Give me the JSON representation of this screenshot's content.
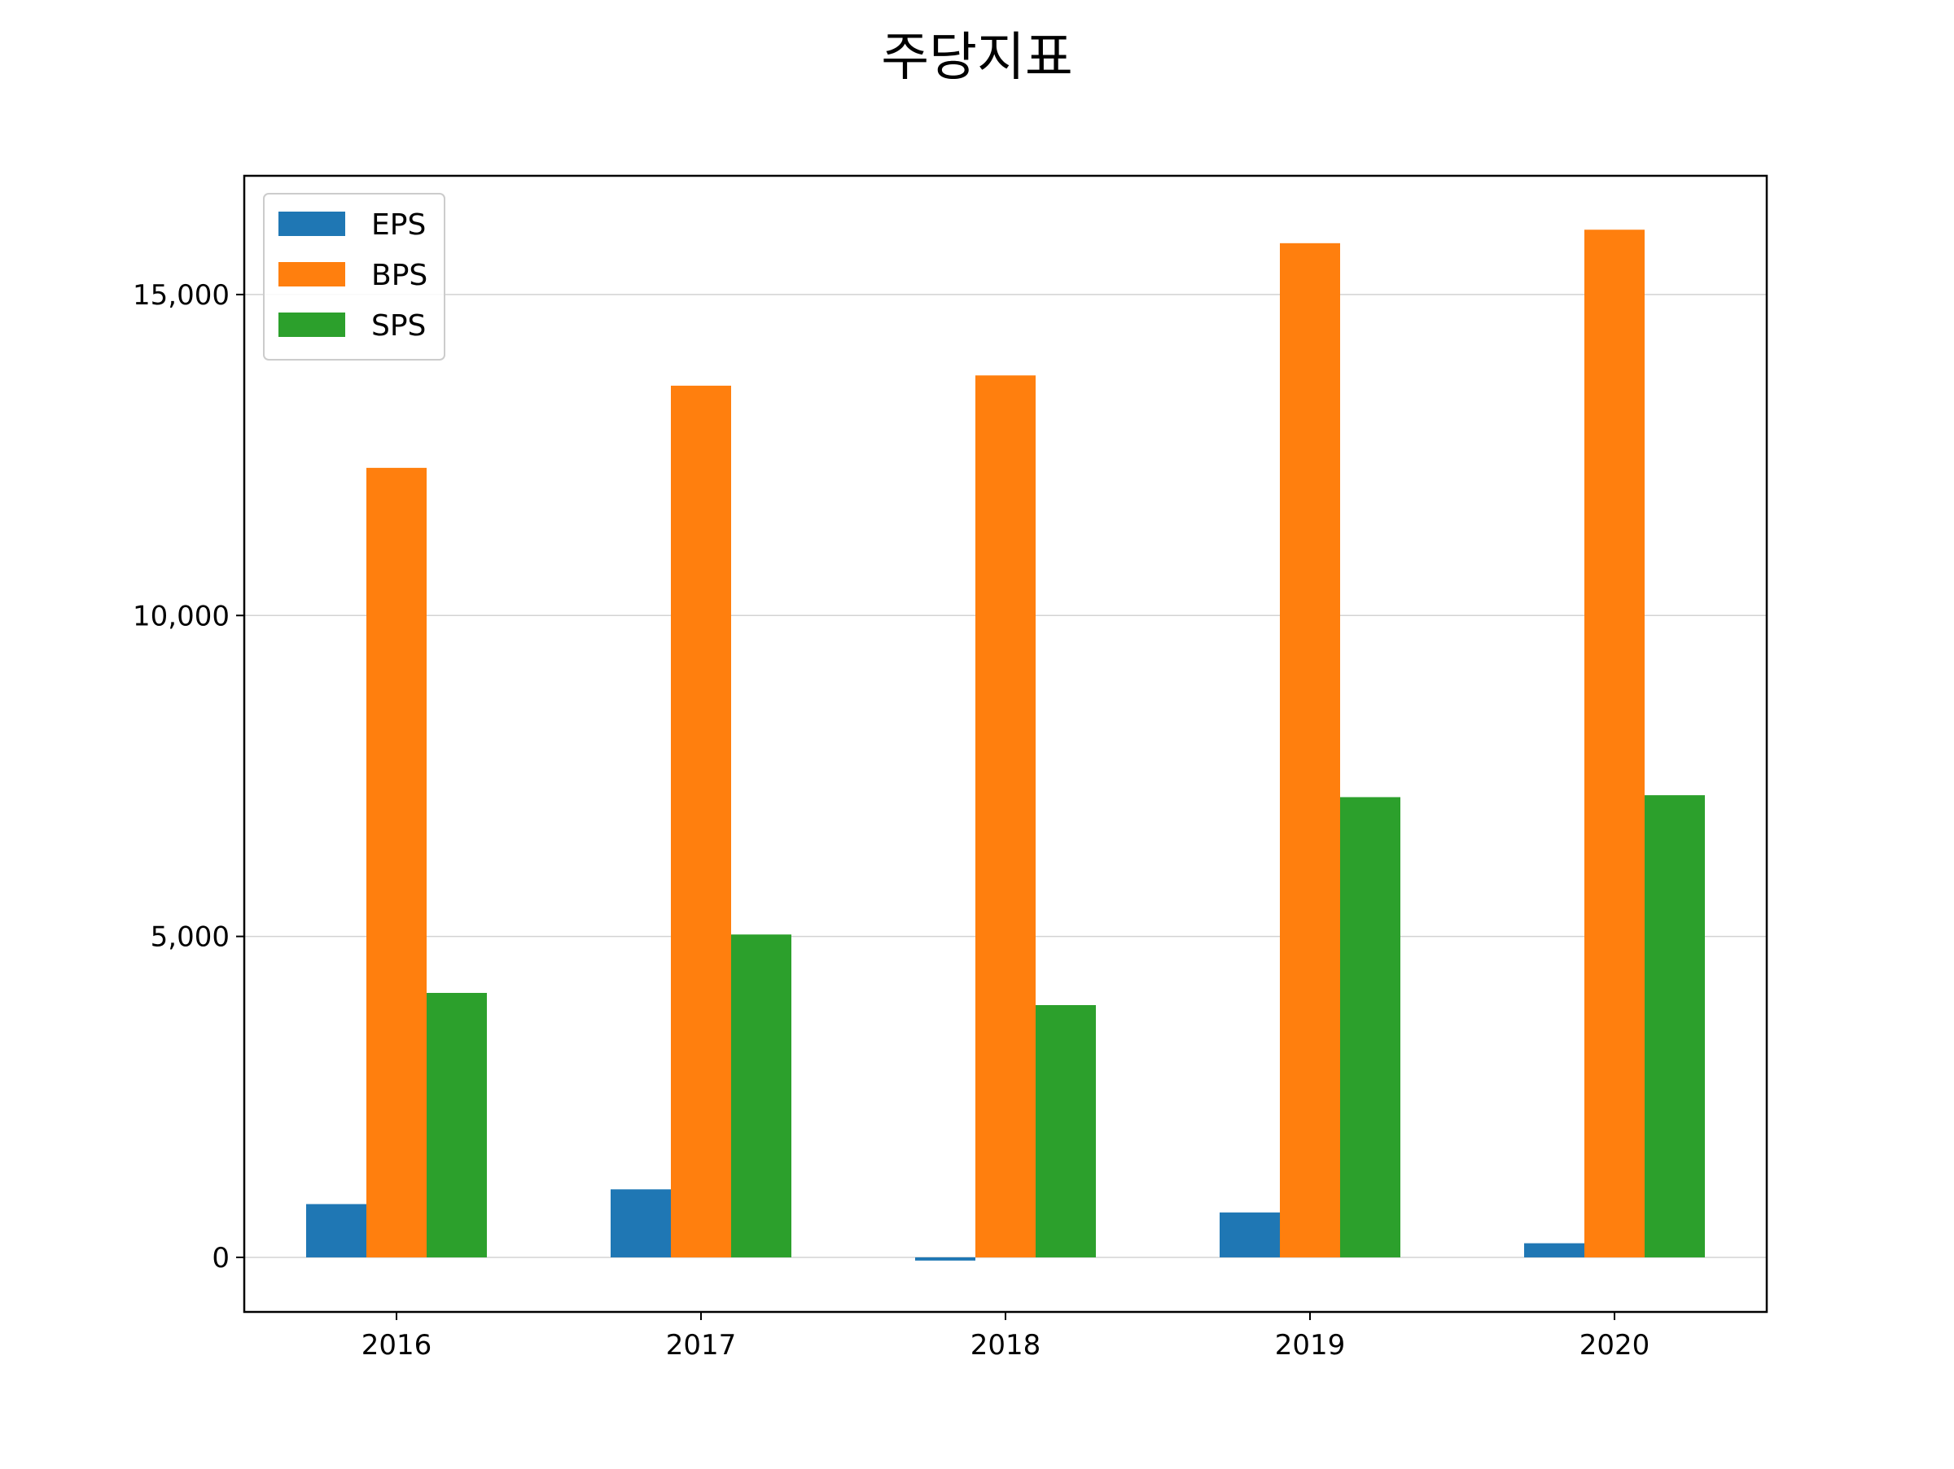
{
  "chart_data": {
    "type": "bar",
    "title": "주당지표",
    "xlabel": "",
    "ylabel": "",
    "categories": [
      "2016",
      "2017",
      "2018",
      "2019",
      "2020"
    ],
    "series": [
      {
        "name": "EPS",
        "color": "#1f77b4",
        "values": [
          830,
          1060,
          -50,
          700,
          220
        ]
      },
      {
        "name": "BPS",
        "color": "#ff7f0e",
        "values": [
          12300,
          13580,
          13740,
          15800,
          16010
        ]
      },
      {
        "name": "SPS",
        "color": "#2ca02c",
        "values": [
          4120,
          5030,
          3930,
          7170,
          7200
        ]
      }
    ],
    "ylim": [
      -850,
      16850
    ],
    "yticks": [
      0,
      5000,
      10000,
      15000
    ],
    "ytick_labels": [
      "0",
      "5,000",
      "10,000",
      "15,000"
    ],
    "grid": {
      "y": true,
      "x": false,
      "color": "#d3d3d3"
    },
    "legend": {
      "placement": "top-left"
    }
  }
}
